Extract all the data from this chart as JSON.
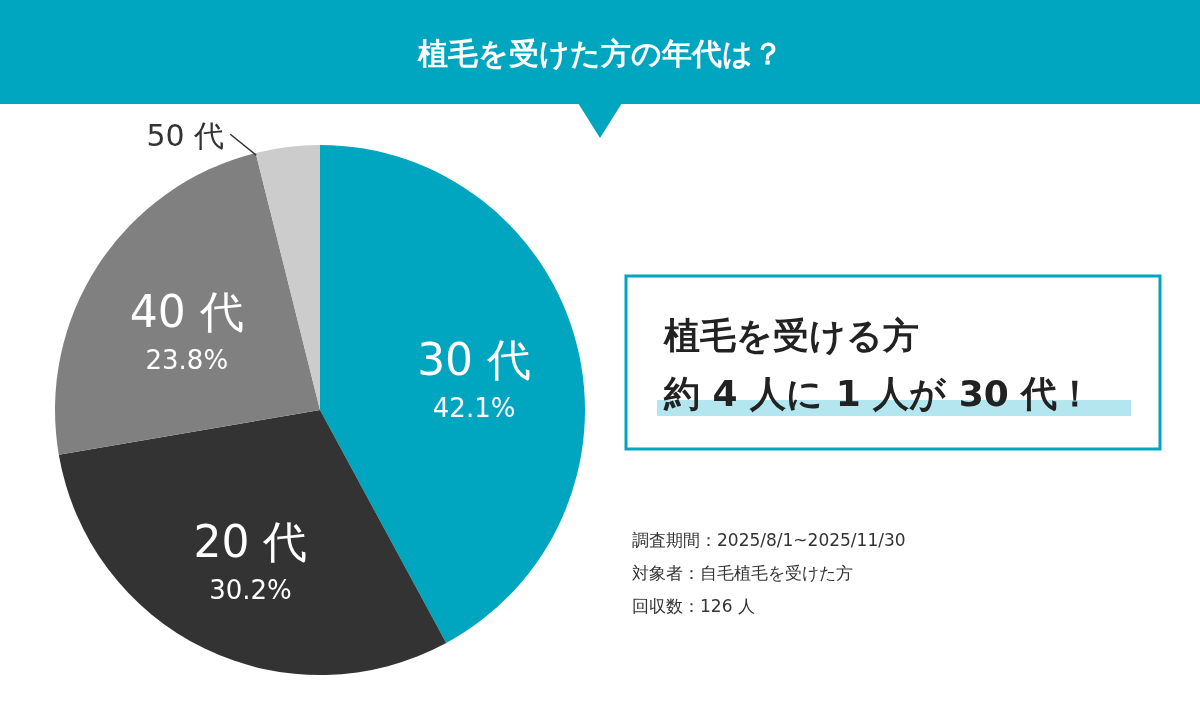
{
  "chart_data": {
    "type": "pie",
    "title": "植毛を受けた方の年代は？",
    "categories": [
      "30 代",
      "20 代",
      "40 代",
      "50 代"
    ],
    "values": [
      42.1,
      30.2,
      23.8,
      3.9
    ],
    "colors": [
      "#00a5bf",
      "#333333",
      "#808080",
      "#cccccc"
    ],
    "value_labels": [
      "42.1%",
      "30.2%",
      "23.8%",
      null
    ],
    "annotations": [
      "植毛を受ける方",
      "約 4 人に 1 人が 30 代！",
      "調査期間：2025/8/1~2025/11/30",
      "対象者：自毛植毛を受けた方",
      "回収数：126 人"
    ]
  }
}
